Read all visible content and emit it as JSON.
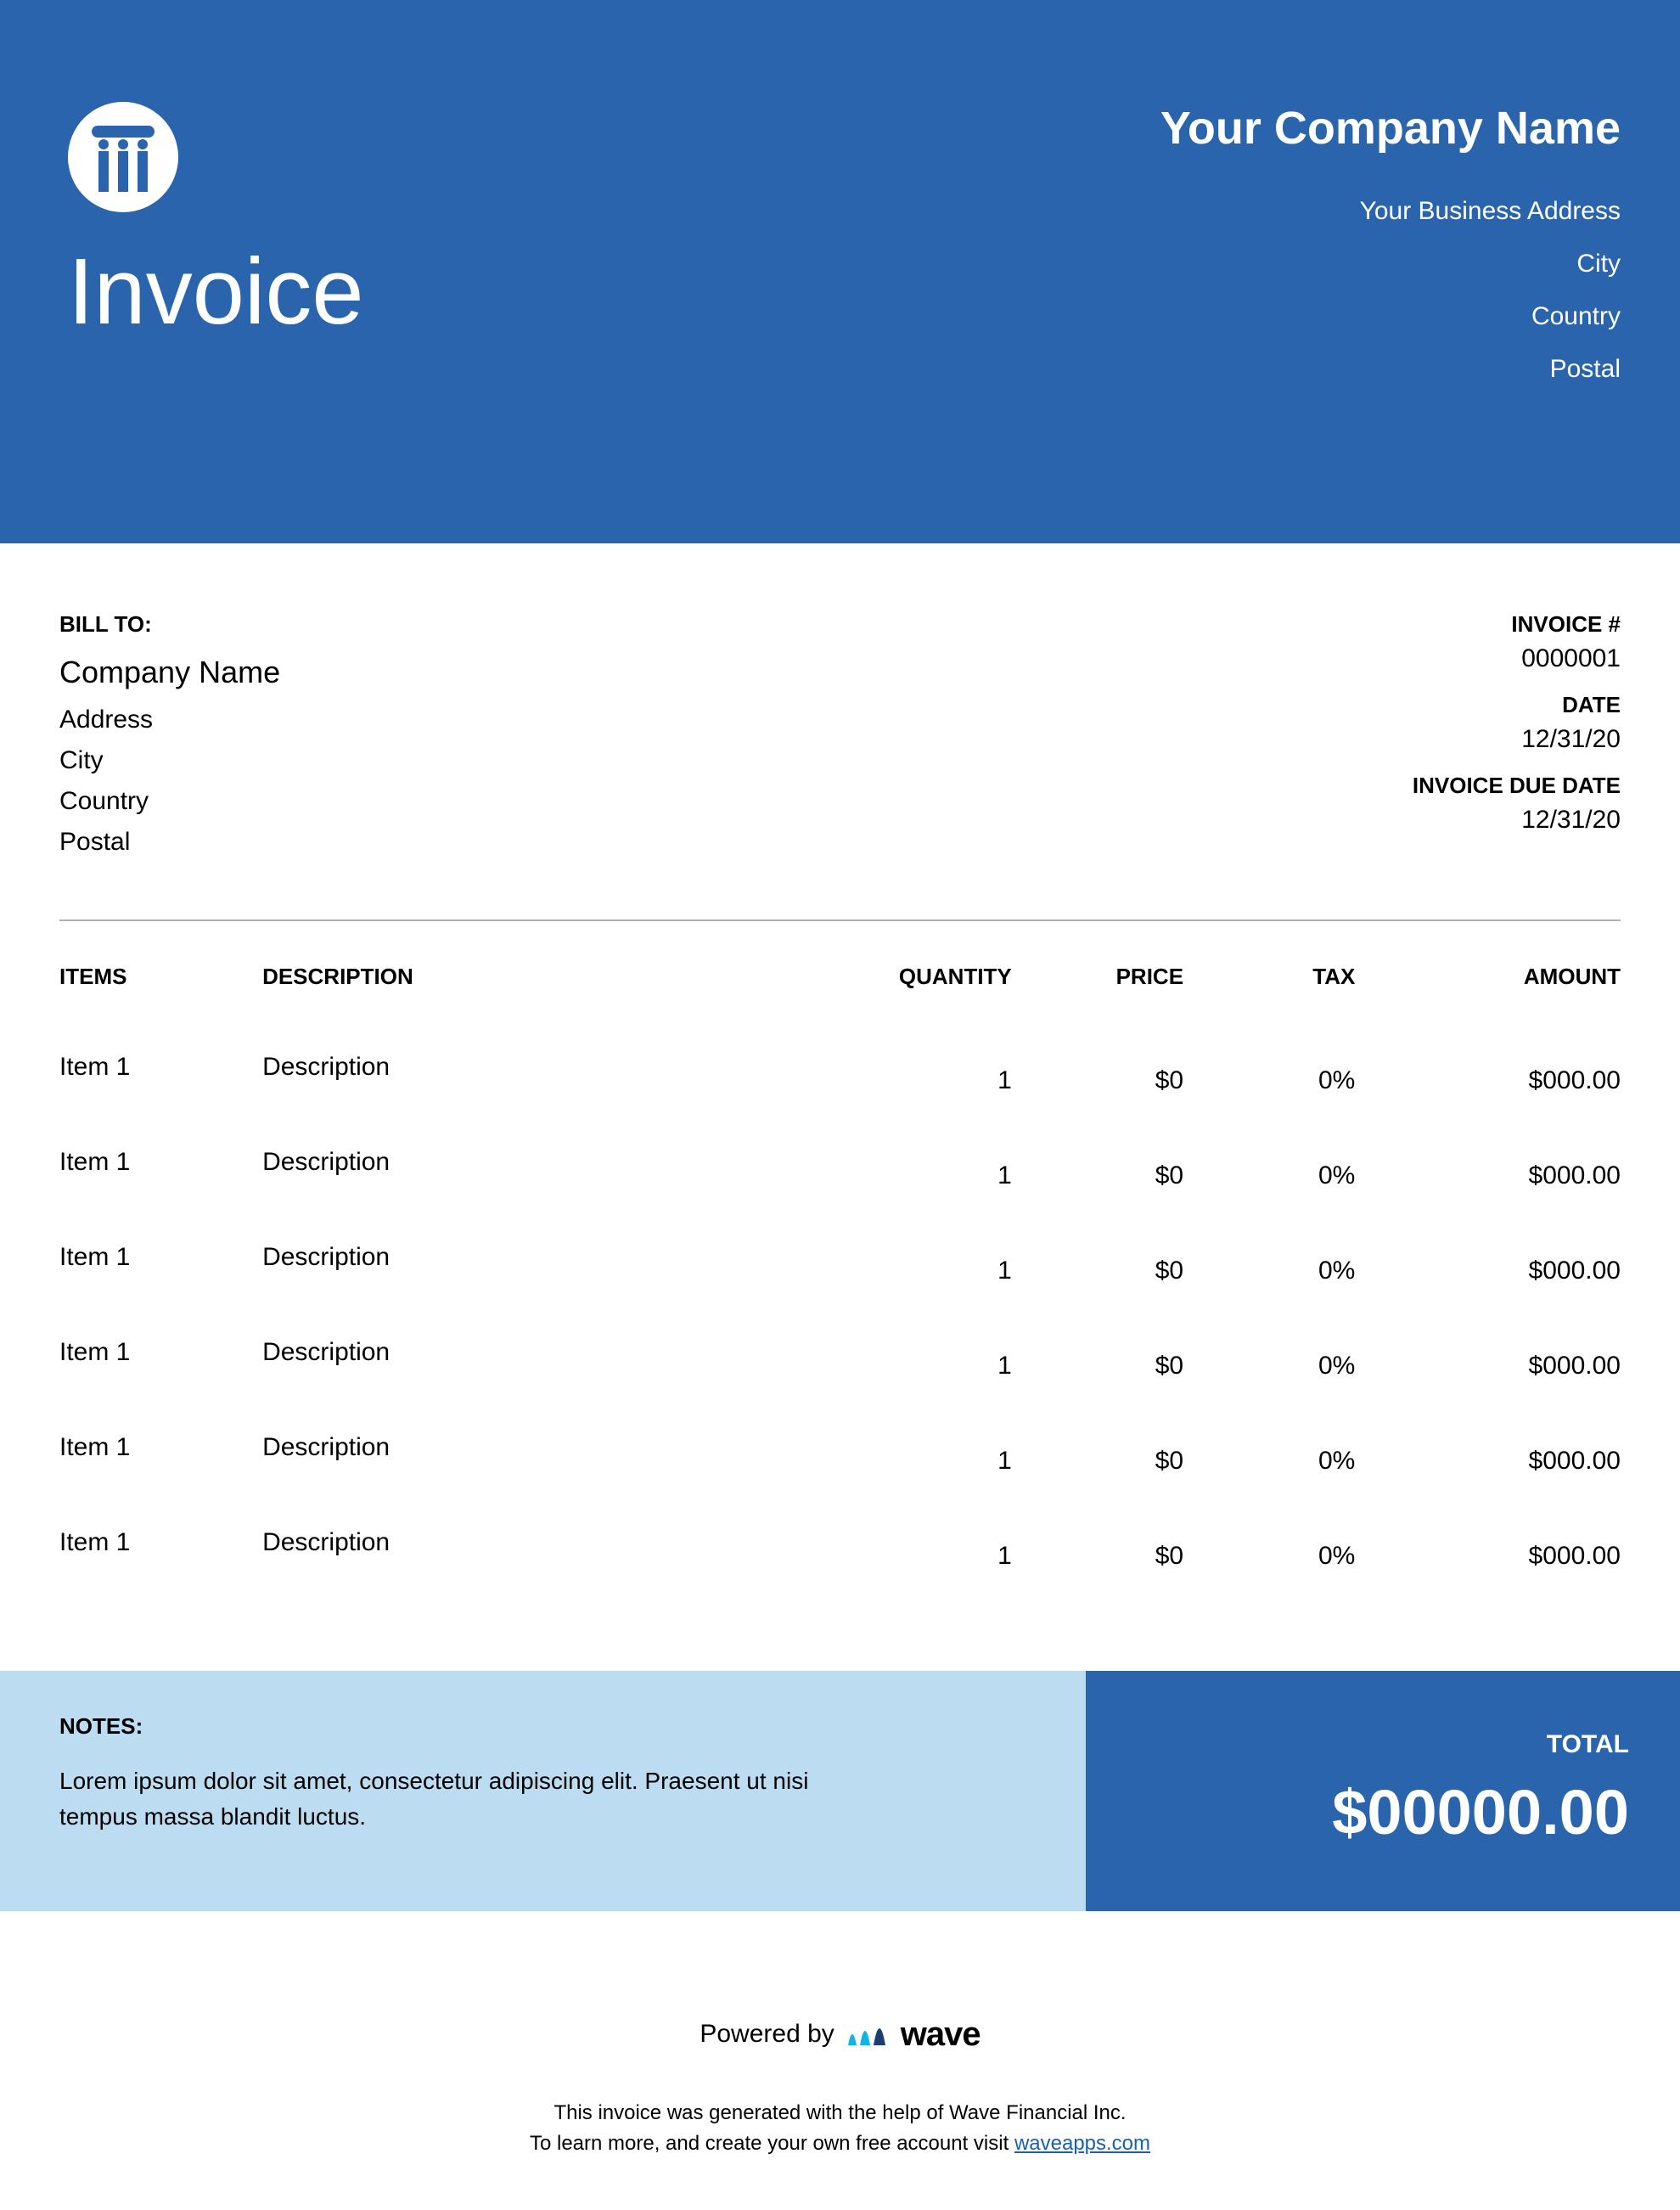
{
  "colors": {
    "primary": "#2a64ad",
    "light": "#bcdcf2",
    "wave_accent": "#0fb5e8",
    "link": "#1a5fb4",
    "divider": "#b0b0b0"
  },
  "header": {
    "title": "Invoice",
    "company_name": "Your Company Name",
    "address": "Your Business Address",
    "city": "City",
    "country": "Country",
    "postal": "Postal"
  },
  "bill_to": {
    "label": "BILL TO:",
    "company": "Company Name",
    "address": "Address",
    "city": "City",
    "country": "Country",
    "postal": "Postal"
  },
  "meta": {
    "invoice_label": "INVOICE #",
    "invoice_number": "0000001",
    "date_label": "DATE",
    "date": "12/31/20",
    "due_label": "INVOICE DUE DATE",
    "due_date": "12/31/20"
  },
  "columns": {
    "items": "ITEMS",
    "description": "DESCRIPTION",
    "quantity": "QUANTITY",
    "price": "PRICE",
    "tax": "TAX",
    "amount": "AMOUNT"
  },
  "line_items": [
    {
      "item": "Item 1",
      "description": "Description",
      "quantity": "1",
      "price": "$0",
      "tax": "0%",
      "amount": "$000.00"
    },
    {
      "item": "Item 1",
      "description": "Description",
      "quantity": "1",
      "price": "$0",
      "tax": "0%",
      "amount": "$000.00"
    },
    {
      "item": "Item 1",
      "description": "Description",
      "quantity": "1",
      "price": "$0",
      "tax": "0%",
      "amount": "$000.00"
    },
    {
      "item": "Item 1",
      "description": "Description",
      "quantity": "1",
      "price": "$0",
      "tax": "0%",
      "amount": "$000.00"
    },
    {
      "item": "Item 1",
      "description": "Description",
      "quantity": "1",
      "price": "$0",
      "tax": "0%",
      "amount": "$000.00"
    },
    {
      "item": "Item 1",
      "description": "Description",
      "quantity": "1",
      "price": "$0",
      "tax": "0%",
      "amount": "$000.00"
    }
  ],
  "notes": {
    "label": "NOTES:",
    "text": "Lorem ipsum dolor sit amet, consectetur adipiscing elit. Praesent ut nisi tempus massa blandit luctus."
  },
  "total": {
    "label": "TOTAL",
    "amount": "$00000.00"
  },
  "powered": {
    "prefix": "Powered by",
    "brand": "wave"
  },
  "fine_print": {
    "line1": "This invoice was generated with the help of Wave Financial Inc.",
    "line2_prefix": "To learn more, and create your own free account visit ",
    "link_text": "waveapps.com"
  }
}
